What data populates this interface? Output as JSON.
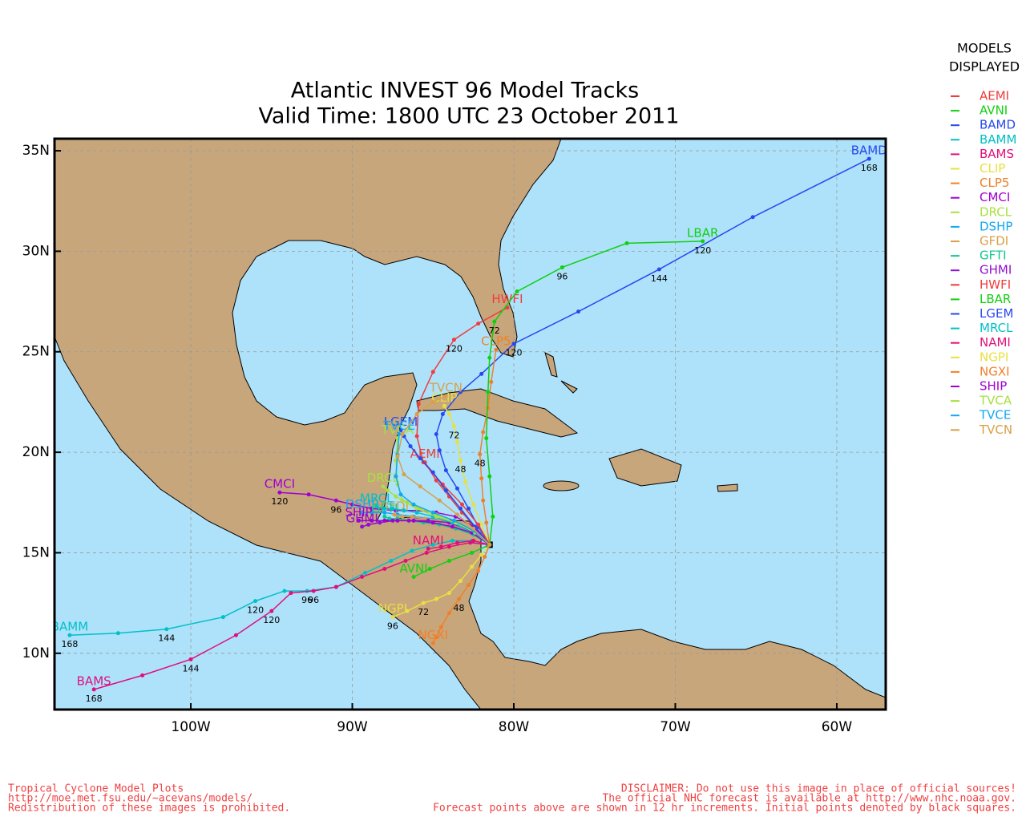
{
  "chart_data": {
    "type": "map",
    "title": "Atlantic INVEST 96 Model Tracks",
    "subtitle": "Valid Time: 1800 UTC 23 October 2011",
    "legend_title": [
      "MODELS",
      "DISPLAYED"
    ],
    "xlim": [
      -108.44,
      -56.97
    ],
    "ylim": [
      7.2,
      35.6
    ],
    "xticks": [
      {
        "value": -100,
        "label": "100W"
      },
      {
        "value": -90,
        "label": "90W"
      },
      {
        "value": -80,
        "label": "80W"
      },
      {
        "value": -70,
        "label": "70W"
      },
      {
        "value": -60,
        "label": "60W"
      }
    ],
    "yticks": [
      {
        "value": 10,
        "label": "10N"
      },
      {
        "value": 15,
        "label": "15N"
      },
      {
        "value": 20,
        "label": "20N"
      },
      {
        "value": 25,
        "label": "25N"
      },
      {
        "value": 30,
        "label": "30N"
      },
      {
        "value": 35,
        "label": "35N"
      }
    ],
    "grid": true,
    "series": [
      {
        "name": "AEMI",
        "color": "#f03c3c",
        "x": [
          -81.5,
          -82.3,
          -83.2,
          -84,
          -84.8,
          -85.5
        ],
        "y": [
          15.4,
          16.2,
          17,
          17.8,
          18.6,
          19.5
        ],
        "hour_labels": []
      },
      {
        "name": "AVNI",
        "color": "#10d010",
        "x": [
          -81.5,
          -82.6,
          -84,
          -85.2,
          -86.2
        ],
        "y": [
          15.4,
          15,
          14.6,
          14.2,
          13.8
        ],
        "hour_labels": []
      },
      {
        "name": "BAMD",
        "color": "#2848f0",
        "x": [
          -81.5,
          -82.2,
          -82.8,
          -83.5,
          -84.2,
          -84.6,
          -84.8,
          -84.4,
          -83.3,
          -82,
          -80,
          -76,
          -71,
          -65.2,
          -58
        ],
        "y": [
          15.4,
          16.3,
          17.2,
          18.2,
          19.1,
          20.1,
          20.9,
          21.9,
          23,
          23.9,
          25.4,
          27,
          29.1,
          31.7,
          34.6
        ],
        "hour_labels": [
          {
            "point": 10,
            "hour": 120
          },
          {
            "point": 12,
            "hour": 144
          },
          {
            "point": 14,
            "hour": 168
          }
        ]
      },
      {
        "name": "BAMM",
        "color": "#00c0c8",
        "x": [
          -81.5,
          -82.6,
          -83.8,
          -85,
          -86.3,
          -87.6,
          -89.2,
          -91,
          -92.8,
          -94.2,
          -96,
          -98,
          -101.5,
          -104.5,
          -107.5
        ],
        "y": [
          15.4,
          15.6,
          15.6,
          15.4,
          15.1,
          14.6,
          14,
          13.3,
          13.1,
          13.1,
          12.6,
          11.8,
          11.2,
          11,
          10.9
        ],
        "hour_labels": [
          {
            "point": 8,
            "hour": 96
          },
          {
            "point": 10,
            "hour": 120
          },
          {
            "point": 12,
            "hour": 144
          },
          {
            "point": 14,
            "hour": 168
          }
        ]
      },
      {
        "name": "BAMS",
        "color": "#e0107a",
        "x": [
          -81.5,
          -82.7,
          -84,
          -85.4,
          -86.7,
          -88,
          -89.4,
          -91,
          -92.4,
          -93.8,
          -95,
          -97.2,
          -100,
          -103,
          -106
        ],
        "y": [
          15.4,
          15.5,
          15.3,
          15,
          14.6,
          14.2,
          13.8,
          13.3,
          13.1,
          13,
          12.1,
          10.9,
          9.7,
          8.9,
          8.2
        ],
        "hour_labels": [
          {
            "point": 8,
            "hour": 96
          },
          {
            "point": 10,
            "hour": 120
          },
          {
            "point": 12,
            "hour": 144
          },
          {
            "point": 14,
            "hour": 168
          }
        ]
      },
      {
        "name": "CLIP",
        "color": "#e8e040",
        "x": [
          -81.5,
          -82,
          -82.5,
          -83,
          -83.3,
          -83.5,
          -83.7,
          -84,
          -84.3
        ],
        "y": [
          15.4,
          16.4,
          17.4,
          18.5,
          19.6,
          20.5,
          21.3,
          21.9,
          22.3
        ],
        "hour_labels": [
          {
            "point": 4,
            "hour": 48
          },
          {
            "point": 6,
            "hour": 72
          }
        ]
      },
      {
        "name": "CLP5",
        "color": "#f08028",
        "x": [
          -81.5,
          -81.7,
          -81.9,
          -82,
          -82.1,
          -81.9,
          -81.6,
          -81.4,
          -81.1
        ],
        "y": [
          15.4,
          16.5,
          17.6,
          18.7,
          19.9,
          21,
          22.2,
          23.5,
          25.1
        ],
        "hour_labels": [
          {
            "point": 4,
            "hour": 48
          }
        ]
      },
      {
        "name": "CMCI",
        "color": "#a000d0",
        "x": [
          -81.5,
          -82.5,
          -83.6,
          -84.8,
          -86,
          -87.3,
          -88.8,
          -90,
          -91,
          -92.7,
          -94.5
        ],
        "y": [
          15.4,
          16.3,
          16.8,
          17,
          17.1,
          17.1,
          17.2,
          17.4,
          17.6,
          17.9,
          18
        ],
        "hour_labels": [
          {
            "point": 8,
            "hour": 96
          },
          {
            "point": 10,
            "hour": 120
          }
        ]
      },
      {
        "name": "DRCL",
        "color": "#a8e040",
        "x": [
          -81.5,
          -82.5,
          -83.7,
          -84.8,
          -85.8,
          -86.6,
          -87.3,
          -87.8,
          -88.1
        ],
        "y": [
          15.4,
          16,
          16.5,
          16.9,
          17.2,
          17.5,
          17.8,
          18.1,
          18.3
        ],
        "hour_labels": []
      },
      {
        "name": "DSHP",
        "color": "#10a8f0",
        "x": [
          -81.5,
          -82.6,
          -83.8,
          -85,
          -86.2,
          -87.2,
          -88,
          -88.8,
          -89.4
        ],
        "y": [
          15.4,
          16.1,
          16.5,
          16.7,
          16.8,
          16.9,
          17,
          17,
          17
        ],
        "hour_labels": []
      },
      {
        "name": "GFDI",
        "color": "#d8a048",
        "x": [
          -81.5,
          -82.5,
          -83.6,
          -84.6,
          -85.5,
          -86.3,
          -86.9,
          -87.2,
          -87.4
        ],
        "y": [
          15.4,
          16,
          16.4,
          16.6,
          16.7,
          16.8,
          16.8,
          16.8,
          16.9
        ],
        "hour_labels": []
      },
      {
        "name": "GFTI",
        "color": "#10c890",
        "x": [
          -81.5,
          -82.5,
          -83.6,
          -84.6,
          -85.6,
          -86.5,
          -87.2,
          -87.7,
          -88
        ],
        "y": [
          15.4,
          15.9,
          16.2,
          16.4,
          16.5,
          16.6,
          16.7,
          16.7,
          16.8
        ],
        "hour_labels": []
      },
      {
        "name": "GHMI",
        "color": "#9010d0",
        "x": [
          -81.5,
          -82.7,
          -84,
          -85.3,
          -86.5,
          -87.5,
          -88.3,
          -89,
          -89.4
        ],
        "y": [
          15.4,
          16.1,
          16.5,
          16.6,
          16.6,
          16.6,
          16.5,
          16.4,
          16.3
        ],
        "hour_labels": []
      },
      {
        "name": "HWFI",
        "color": "#f03c3c",
        "x": [
          -81.5,
          -82.2,
          -83.2,
          -84.4,
          -85.6,
          -86,
          -85.9,
          -85,
          -83.7,
          -82.2,
          -80.4
        ],
        "y": [
          15.4,
          16.4,
          17.4,
          18.4,
          19.5,
          20.8,
          22.4,
          24,
          25.6,
          26.4,
          27.2
        ],
        "hour_labels": [
          {
            "point": 8,
            "hour": 120
          }
        ]
      },
      {
        "name": "LBAR",
        "color": "#10d010",
        "x": [
          -81.5,
          -81.3,
          -81.5,
          -81.7,
          -81.6,
          -81.5,
          -81.2,
          -79.8,
          -77,
          -73,
          -68.3
        ],
        "y": [
          15.4,
          16.8,
          18.8,
          20.7,
          23,
          24.7,
          26.5,
          28,
          29.2,
          30.4,
          30.5
        ],
        "hour_labels": [
          {
            "point": 6,
            "hour": 72
          },
          {
            "point": 8,
            "hour": 96
          },
          {
            "point": 10,
            "hour": 120
          }
        ]
      },
      {
        "name": "LGEM",
        "color": "#2848f0",
        "x": [
          -81.5,
          -82.4,
          -83.3,
          -84.2,
          -85,
          -85.8,
          -86.4,
          -86.8,
          -87
        ],
        "y": [
          15.4,
          16.3,
          17.2,
          18.1,
          19,
          19.7,
          20.3,
          20.8,
          21.1
        ],
        "hour_labels": []
      },
      {
        "name": "MRCL",
        "color": "#00c0c8",
        "x": [
          -81.5,
          -82.6,
          -83.8,
          -85,
          -86,
          -86.8,
          -87.5,
          -88,
          -88.5
        ],
        "y": [
          15.4,
          16,
          16.5,
          16.8,
          17,
          17.1,
          17.2,
          17.2,
          17.3
        ],
        "hour_labels": []
      },
      {
        "name": "NAMI",
        "color": "#e0107a",
        "x": [
          -81.5,
          -82.5,
          -83.5,
          -84.5,
          -85.3
        ],
        "y": [
          15.4,
          15.6,
          15.5,
          15.3,
          15.2
        ],
        "hour_labels": []
      },
      {
        "name": "NGPI",
        "color": "#e8e040",
        "x": [
          -81.5,
          -82,
          -82.6,
          -83.3,
          -84,
          -84.8,
          -85.6,
          -86.6,
          -87.5
        ],
        "y": [
          15.4,
          14.9,
          14.3,
          13.6,
          13,
          12.7,
          12.5,
          12.1,
          11.8
        ],
        "hour_labels": [
          {
            "point": 6,
            "hour": 72
          },
          {
            "point": 8,
            "hour": 96
          }
        ]
      },
      {
        "name": "NGXI",
        "color": "#f08028",
        "x": [
          -81.5,
          -81.8,
          -82.2,
          -82.8,
          -83.4,
          -84,
          -84.5,
          -84.8,
          -85
        ],
        "y": [
          15.4,
          14.8,
          14.1,
          13.4,
          12.7,
          12,
          11.3,
          10.8,
          10.5
        ],
        "hour_labels": [
          {
            "point": 4,
            "hour": 48
          }
        ]
      },
      {
        "name": "SHIP",
        "color": "#a000d0",
        "x": [
          -81.5,
          -82.6,
          -83.8,
          -85,
          -86.2,
          -87.2,
          -88,
          -88.8,
          -89.6
        ],
        "y": [
          15.4,
          16,
          16.3,
          16.5,
          16.6,
          16.6,
          16.6,
          16.6,
          16.6
        ],
        "hour_labels": []
      },
      {
        "name": "TVCA",
        "color": "#a8e040",
        "x": [
          -81.5,
          -82.4,
          -83.6,
          -84.8,
          -86,
          -86.9,
          -87.2,
          -87.3,
          -87.2
        ],
        "y": [
          15.4,
          16,
          16.5,
          16.8,
          17.2,
          17.6,
          18.4,
          19.6,
          20.7
        ],
        "hour_labels": []
      },
      {
        "name": "TVCE",
        "color": "#10a8f0",
        "x": [
          -81.5,
          -82.5,
          -83.7,
          -85,
          -86.2,
          -87,
          -87.3,
          -87.2,
          -87.1
        ],
        "y": [
          15.4,
          16.1,
          16.6,
          17,
          17.4,
          17.9,
          18.8,
          19.9,
          20.9
        ],
        "hour_labels": []
      },
      {
        "name": "TVCN",
        "color": "#d8a048",
        "x": [
          -81.5,
          -82.5,
          -83.5,
          -84.6,
          -85.8,
          -86.8,
          -87.2,
          -86.9,
          -86,
          -85,
          -84.2
        ],
        "y": [
          15.4,
          16.2,
          16.9,
          17.6,
          18.3,
          18.9,
          19.8,
          20.9,
          21.9,
          22.5,
          22.8
        ],
        "hour_labels": []
      }
    ],
    "footer_left": [
      "Tropical Cyclone Model Plots",
      "http://moe.met.fsu.edu/~acevans/models/",
      "Redistribution of these images is prohibited."
    ],
    "footer_right": [
      "DISCLAIMER: Do not use this image in place of official sources!",
      "The official NHC forecast is available at http://www.nhc.noaa.gov.",
      "Forecast points above are shown in 12 hr increments. Initial points denoted by black squares."
    ]
  }
}
